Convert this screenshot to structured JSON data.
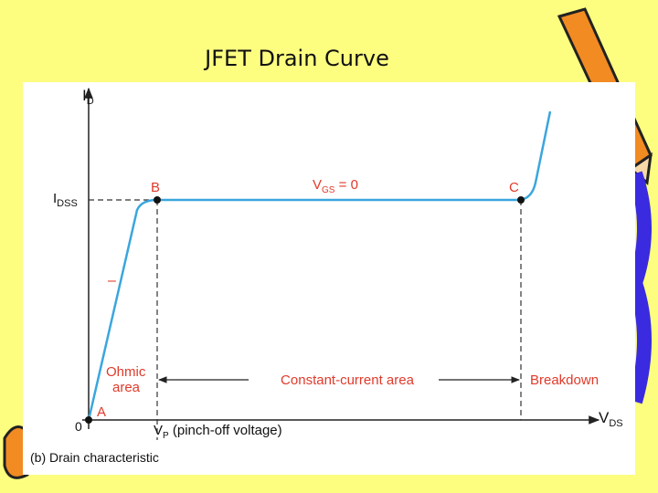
{
  "header": {
    "title": "JFET Drain Curve"
  },
  "diagram": {
    "y_axis_label": {
      "main": "I",
      "sub": "D"
    },
    "x_axis_label": {
      "main": "V",
      "sub": "DS"
    },
    "idss_label": {
      "main": "I",
      "sub": "DSS"
    },
    "origin_label": "0",
    "points": {
      "a": "A",
      "b": "B",
      "c": "C"
    },
    "vgs_label": {
      "main": "V",
      "sub": "GS",
      "rest": " = 0"
    },
    "dash_mark": "–",
    "vp_label": {
      "main": "V",
      "sub": "P",
      "rest": " (pinch-off voltage)"
    },
    "regions": {
      "ohmic": [
        "Ohmic",
        "area"
      ],
      "constant": "Constant-current area",
      "breakdown": "Breakdown"
    },
    "caption": "(b) Drain characteristic"
  }
}
